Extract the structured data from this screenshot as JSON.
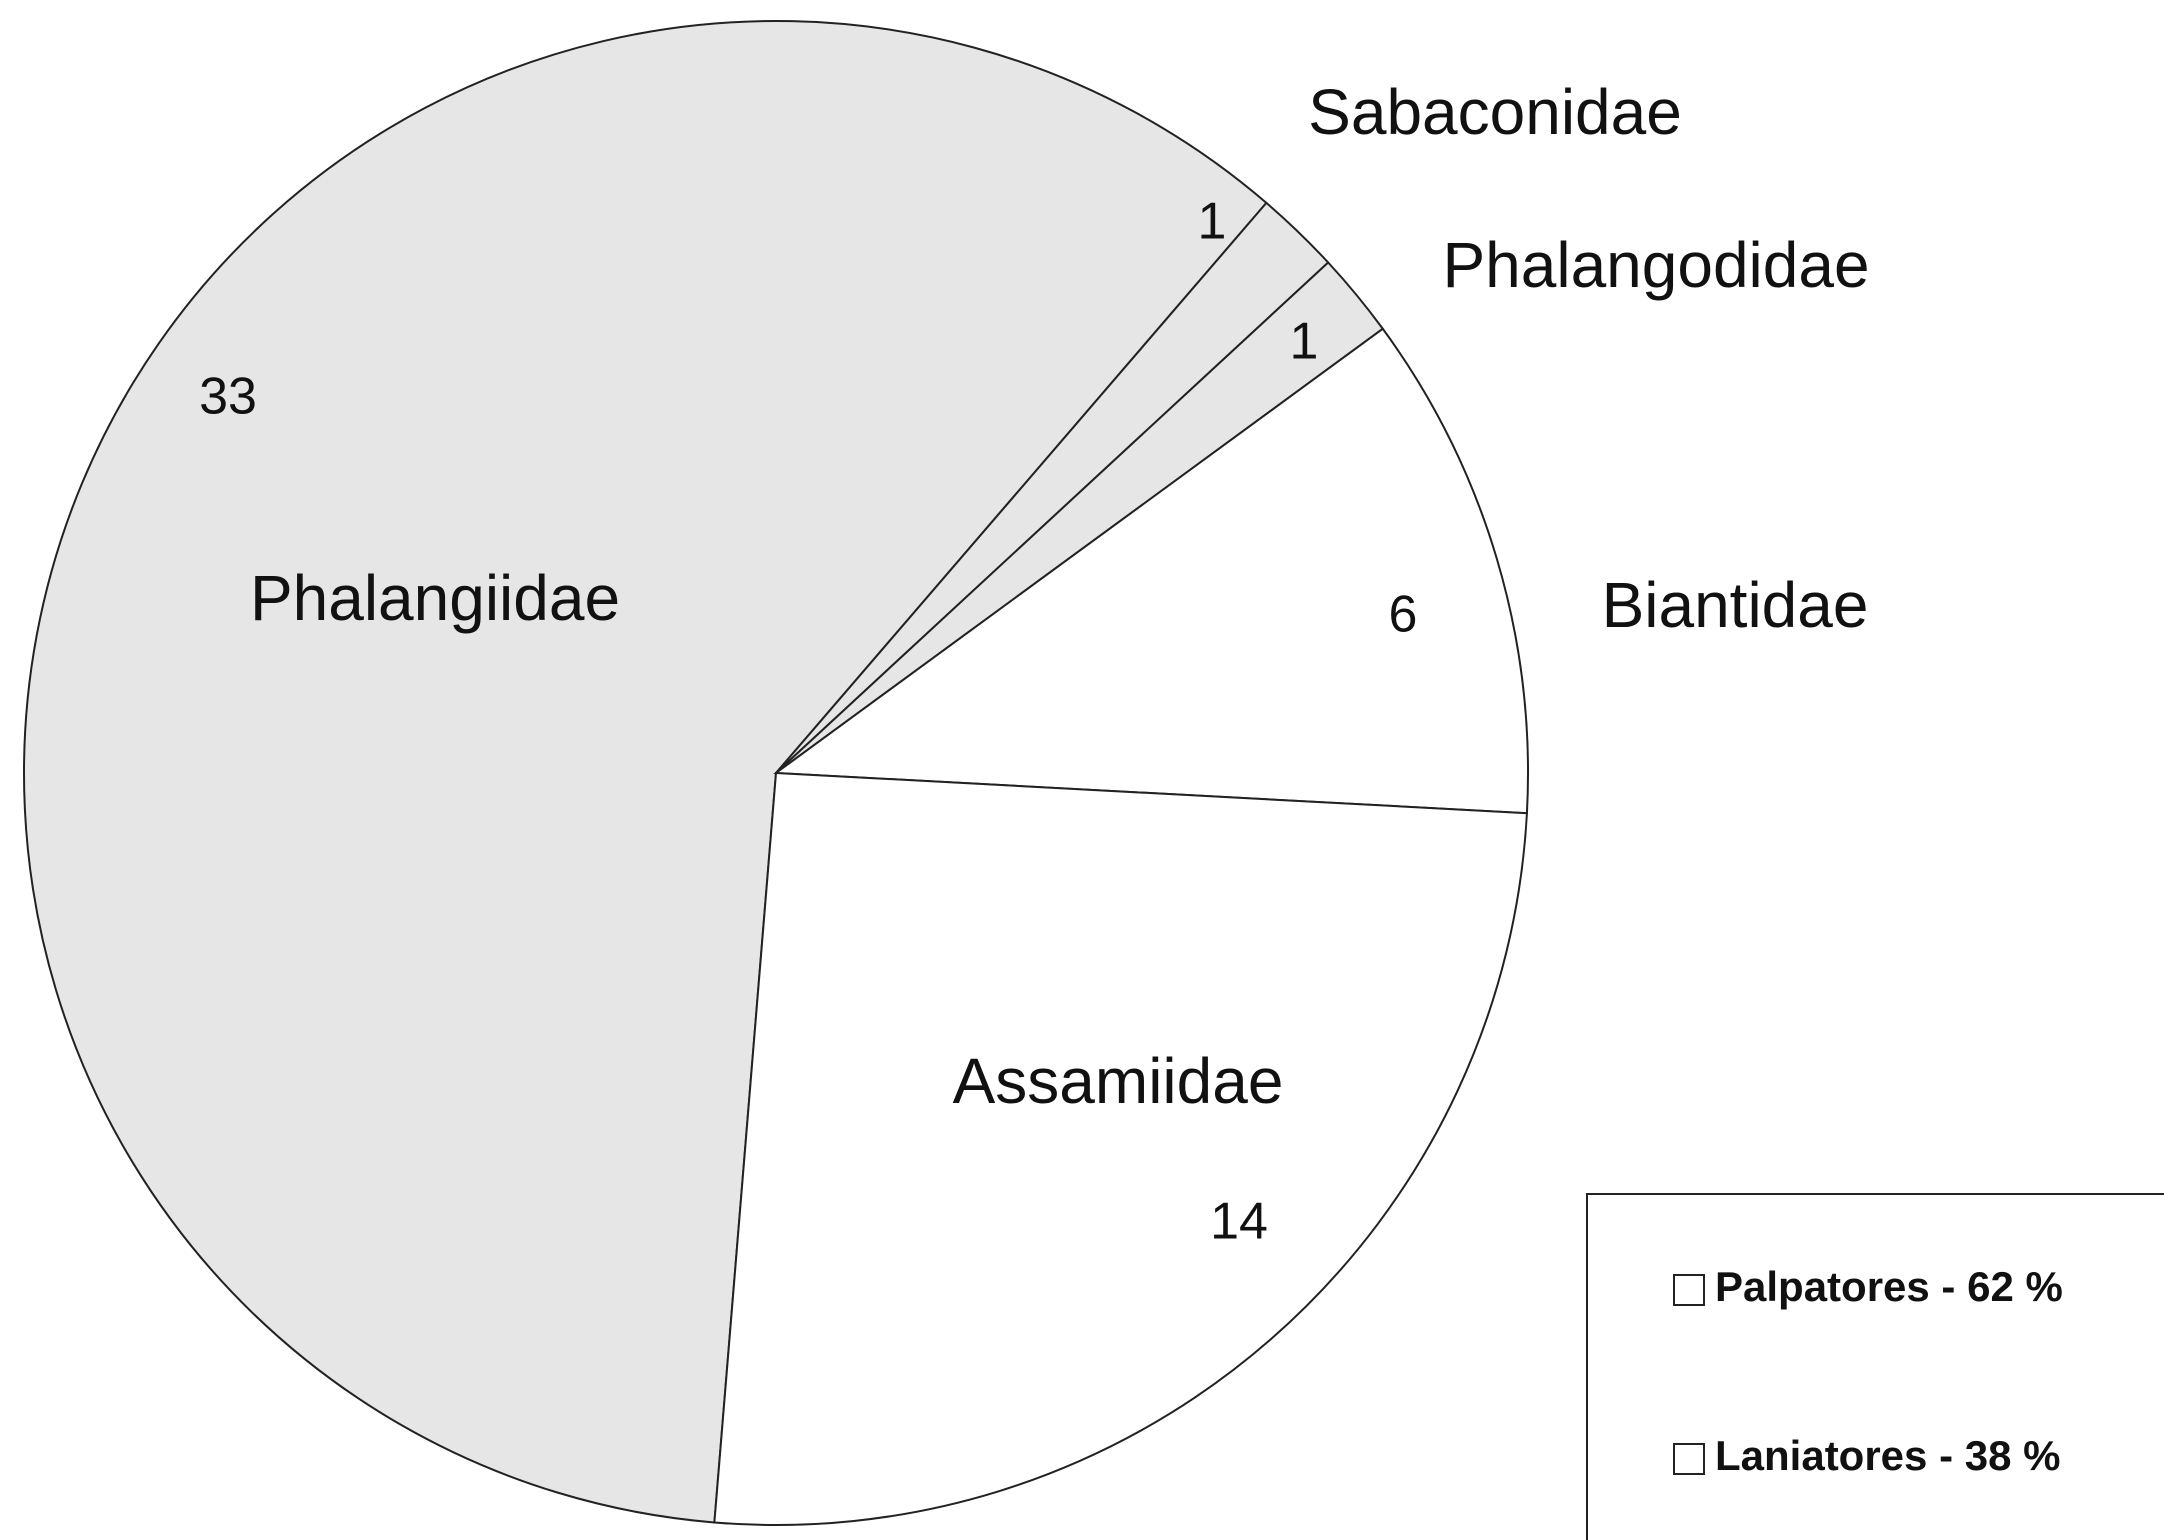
{
  "chart_data": {
    "type": "pie",
    "categories": [
      "Phalangiidae",
      "Sabaconidae",
      "Phalangodidae",
      "Biantidae",
      "Assamiidae"
    ],
    "values": [
      33,
      1,
      1,
      6,
      14
    ],
    "colors": [
      "#e6e6e6",
      "#e6e6e6",
      "#e6e6e6",
      "#ffffff",
      "#ffffff"
    ],
    "legend": [
      {
        "name": "Palpatores - 62 %",
        "color": "#ffffff"
      },
      {
        "name": "Laniatores - 38 %",
        "color": "#ffffff"
      }
    ],
    "legend_position": "lower right"
  }
}
